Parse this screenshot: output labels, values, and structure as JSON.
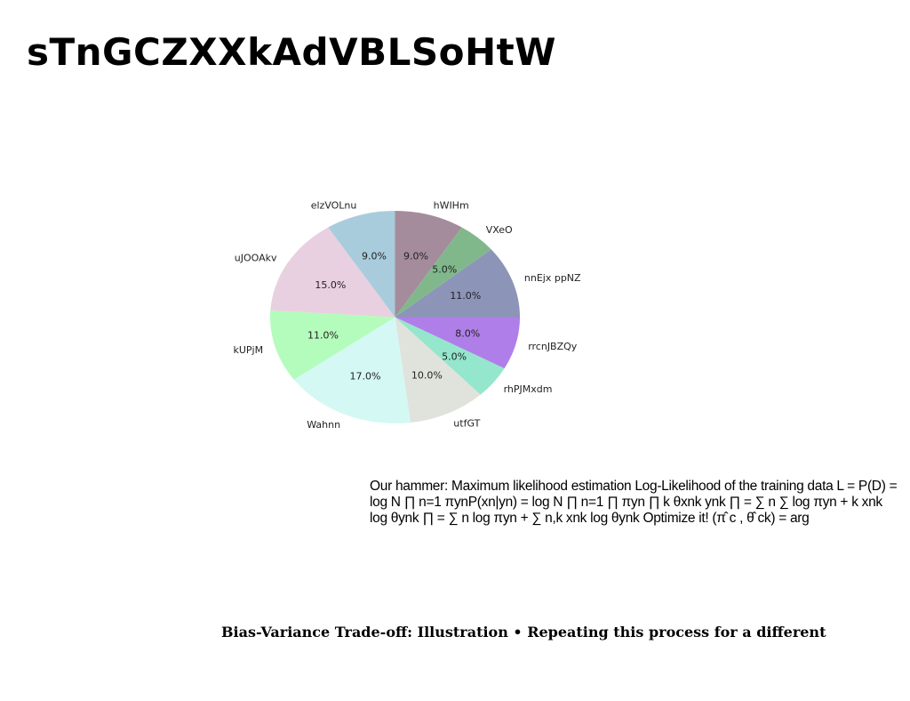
{
  "page": {
    "title": "sTnGCZXXkAdVBLSoHtW",
    "body_text": "Our hammer: Maximum likelihood estimation Log-Likelihood of the training data L = P(D) = log N ∏ n=1 πynP(xn|yn) = log N ∏ n=1 ∏ πyn ∏ k θxnk ynk ∏ = ∑ n ∑ log πyn + k xnk log θynk ∏ = ∑ n log πyn + ∑ n,k xnk log θynk Optimize it! (π̂ c , θ̂ ck) = arg",
    "caption": "Bias-Variance Trade-off: Illustration • Repeating this process for a different"
  },
  "chart_data": {
    "type": "pie",
    "title": "",
    "start_angle_deg": 90,
    "direction": "clockwise",
    "slices": [
      {
        "label": "hWIHm",
        "value": 9.0,
        "pct_label": "9.0%",
        "color": "#a48c9c"
      },
      {
        "label": "VXeO",
        "value": 5.0,
        "pct_label": "5.0%",
        "color": "#80b88c"
      },
      {
        "label": "nnEjx ppNZ",
        "value": 11.0,
        "pct_label": "11.0%",
        "color": "#8c94b8"
      },
      {
        "label": "rrcnJBZQy",
        "value": 8.0,
        "pct_label": "8.0%",
        "color": "#b07ee8"
      },
      {
        "label": "rhPJMxdm",
        "value": 5.0,
        "pct_label": "5.0%",
        "color": "#94e6cc"
      },
      {
        "label": "utfGT",
        "value": 10.0,
        "pct_label": "10.0%",
        "color": "#e0e2dc"
      },
      {
        "label": "Wahnn",
        "value": 17.0,
        "pct_label": "17.0%",
        "color": "#d4f8f4"
      },
      {
        "label": "kUPjM",
        "value": 11.0,
        "pct_label": "11.0%",
        "color": "#b4fcbc"
      },
      {
        "label": "uJOOAkv",
        "value": 15.0,
        "pct_label": "15.0%",
        "color": "#e8d0e0"
      },
      {
        "label": "elzVOLnu",
        "value": 9.0,
        "pct_label": "9.0%",
        "color": "#a8ccdc"
      }
    ]
  }
}
